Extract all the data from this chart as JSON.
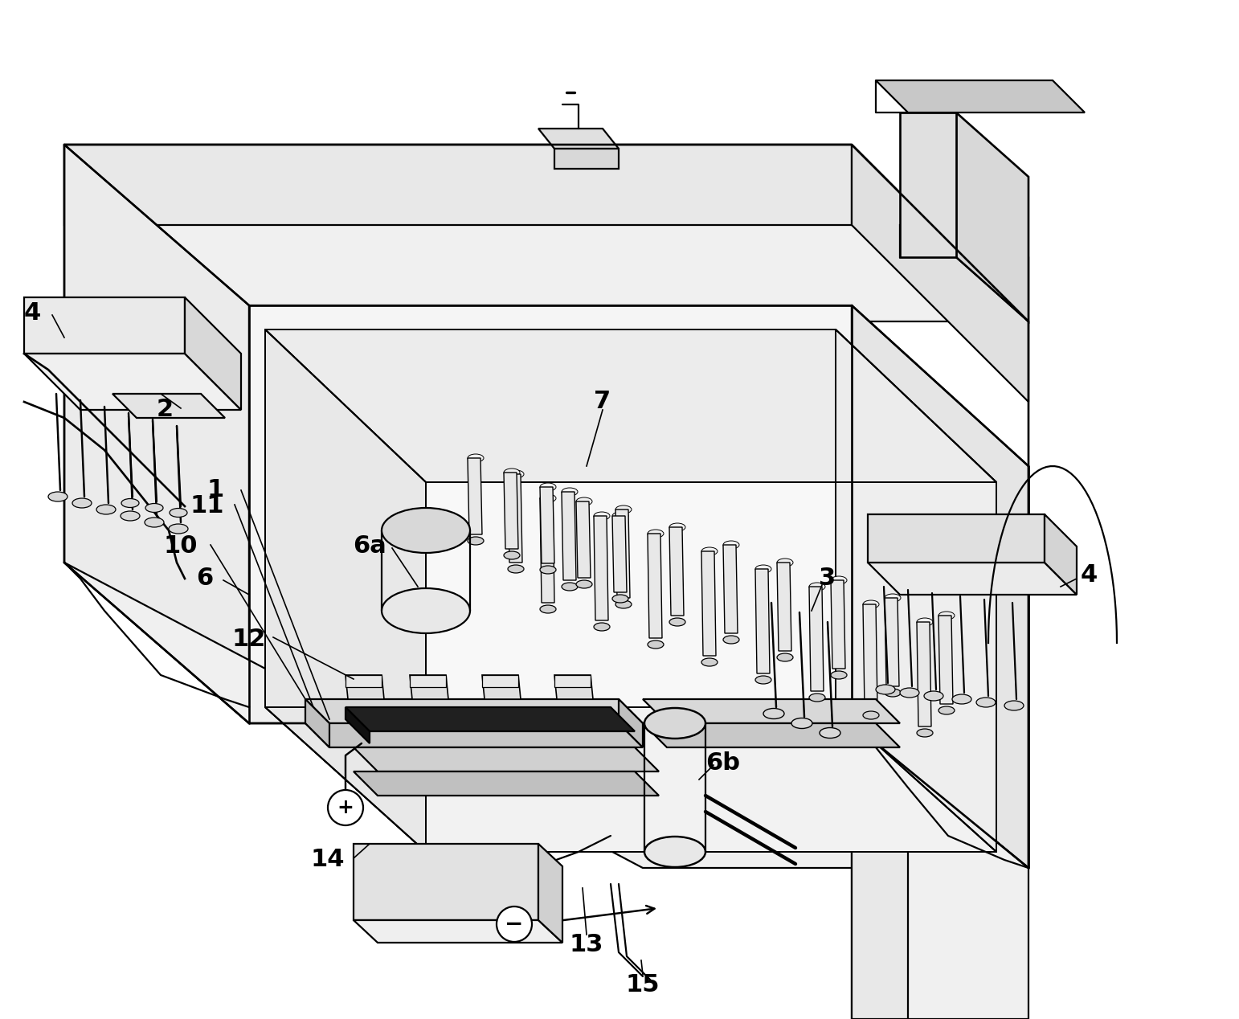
{
  "bg_color": "#ffffff",
  "line_color": "#000000",
  "lw": 1.6,
  "figsize": [
    15.42,
    12.68
  ],
  "dpi": 100
}
